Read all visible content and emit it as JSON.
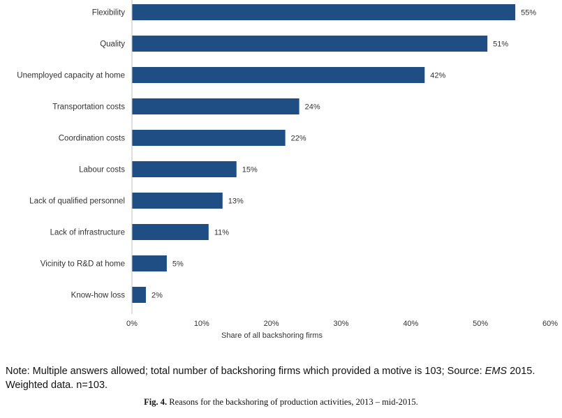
{
  "chart_data": {
    "type": "bar",
    "orientation": "horizontal",
    "categories": [
      "Flexibility",
      "Quality",
      "Unemployed capacity at home",
      "Transportation costs",
      "Coordination costs",
      "Labour costs",
      "Lack of qualified personnel",
      "Lack of infrastructure",
      "Vicinity to R&D at home",
      "Know-how loss"
    ],
    "values": [
      55,
      51,
      42,
      24,
      22,
      15,
      13,
      11,
      5,
      2
    ],
    "value_labels": [
      "55%",
      "51%",
      "42%",
      "24%",
      "22%",
      "15%",
      "13%",
      "11%",
      "5%",
      "2%"
    ],
    "xlim": [
      0,
      60
    ],
    "xticks": [
      "0%",
      "10%",
      "20%",
      "30%",
      "40%",
      "50%",
      "60%"
    ],
    "xlabel": "Share of all backshoring firms",
    "ylabel": "",
    "grid": false,
    "bar_color": "#1f4e84"
  },
  "note": {
    "prefix": "Note: Multiple answers allowed; total number of backshoring firms which provided a motive is 103; Source: ",
    "source_name": "EMS",
    "suffix": " 2015.",
    "line2": "Weighted data. n=103."
  },
  "caption": {
    "label": "Fig. 4.",
    "text": " Reasons for the backshoring of production activities, 2013 – mid-2015."
  }
}
